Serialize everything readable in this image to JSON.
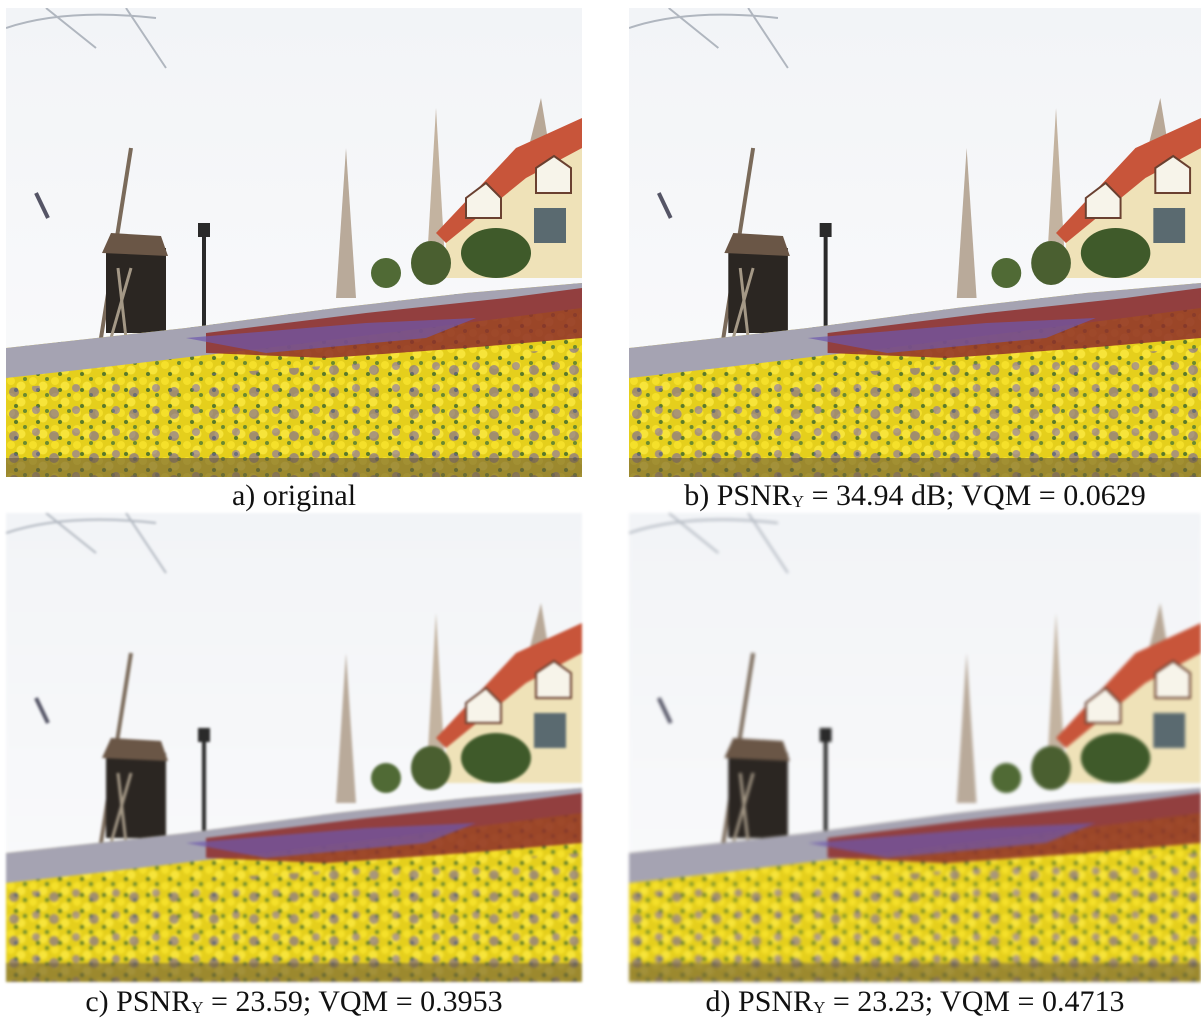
{
  "panels": [
    {
      "id": "a",
      "label": "a) original",
      "metric": null
    },
    {
      "id": "b",
      "prefix": "b) PSNR",
      "sub": "Y",
      "suffix": " = 34.94 dB; VQM = 0.0629"
    },
    {
      "id": "c",
      "prefix": "c) PSNR",
      "sub": "Y",
      "suffix": " = 23.59; VQM = 0.3953"
    },
    {
      "id": "d",
      "prefix": "d) PSNR",
      "sub": "Y",
      "suffix": " = 23.23; VQM = 0.4713"
    }
  ],
  "image_description_icon": "windmill-flower-field-scene"
}
